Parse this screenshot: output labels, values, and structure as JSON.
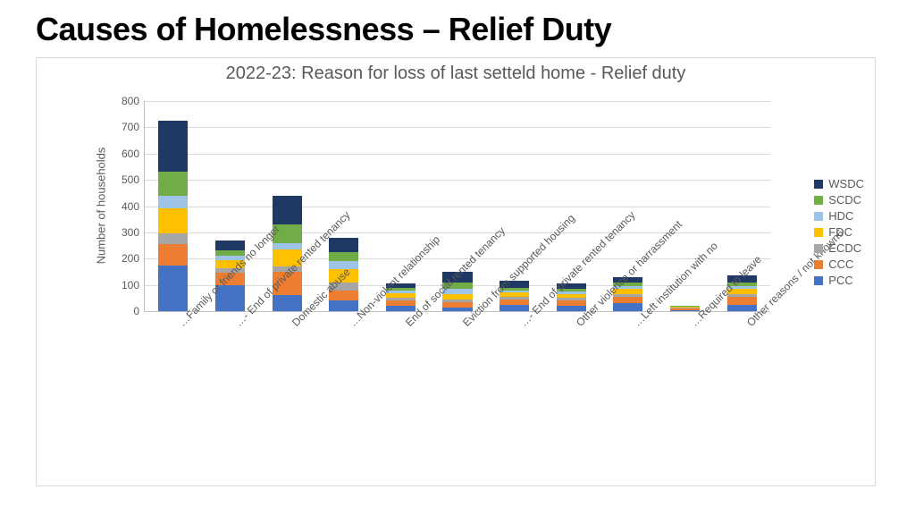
{
  "page_title": "Causes of Homelessness – Relief Duty",
  "chart": {
    "type": "stacked-bar",
    "title": "2022-23: Reason for loss of last setteld home - Relief duty",
    "y_axis_label": "Number of households",
    "y_max": 800,
    "y_ticks": [
      0,
      100,
      200,
      300,
      400,
      500,
      600,
      700,
      800
    ],
    "background_color": "#ffffff",
    "grid_color": "#d9d9d9",
    "border_color": "#d9d9d9",
    "axis_color": "#bfbfbf",
    "title_fontsize": 20,
    "title_color": "#595959",
    "label_fontsize": 12,
    "label_color": "#595959",
    "bar_width": 0.52,
    "series": [
      {
        "key": "WSDC",
        "color": "#1f3864"
      },
      {
        "key": "SCDC",
        "color": "#70ad47"
      },
      {
        "key": "HDC",
        "color": "#9dc3e6"
      },
      {
        "key": "FDC",
        "color": "#ffc000"
      },
      {
        "key": "ECDC",
        "color": "#a6a6a6"
      },
      {
        "key": "CCC",
        "color": "#ed7d31"
      },
      {
        "key": "PCC",
        "color": "#4472c4"
      }
    ],
    "categories": [
      "Family or friends no longer…",
      "End of private rented tenancy -…",
      "Domestic abuse",
      "Non-violent relationship…",
      "End of social rented tenancy",
      "Eviction from supported housing",
      "End of private rented tenancy -…",
      "Other violence or harrassment",
      "Left institution with no…",
      "Required to leave…",
      "Other reasons / not known6"
    ],
    "values": {
      "PCC": [
        175,
        100,
        60,
        40,
        22,
        15,
        25,
        20,
        30,
        5,
        25
      ],
      "CCC": [
        80,
        45,
        90,
        40,
        20,
        20,
        20,
        20,
        25,
        5,
        30
      ],
      "ECDC": [
        40,
        20,
        20,
        30,
        10,
        10,
        10,
        10,
        10,
        3,
        10
      ],
      "FDC": [
        95,
        30,
        65,
        50,
        15,
        20,
        15,
        15,
        20,
        3,
        20
      ],
      "HDC": [
        50,
        15,
        25,
        30,
        10,
        20,
        10,
        10,
        10,
        2,
        10
      ],
      "SCDC": [
        90,
        20,
        70,
        35,
        10,
        25,
        10,
        10,
        15,
        2,
        15
      ],
      "WSDC": [
        195,
        40,
        110,
        55,
        20,
        40,
        25,
        20,
        20,
        2,
        25
      ]
    }
  }
}
